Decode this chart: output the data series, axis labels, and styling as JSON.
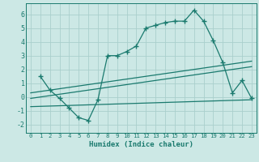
{
  "xlabel": "Humidex (Indice chaleur)",
  "ylabel": "",
  "bg_color": "#cce8e5",
  "line_color": "#1a7a6e",
  "grid_color": "#aacfcc",
  "xlim": [
    -0.5,
    23.5
  ],
  "ylim": [
    -2.6,
    6.8
  ],
  "yticks": [
    -2,
    -1,
    0,
    1,
    2,
    3,
    4,
    5,
    6
  ],
  "xticks": [
    0,
    1,
    2,
    3,
    4,
    5,
    6,
    7,
    8,
    9,
    10,
    11,
    12,
    13,
    14,
    15,
    16,
    17,
    18,
    19,
    20,
    21,
    22,
    23
  ],
  "series1_x": [
    1,
    2,
    3,
    4,
    5,
    6,
    7,
    8,
    9,
    10,
    11,
    12,
    13,
    14,
    15,
    16,
    17,
    18,
    19,
    20,
    21,
    22,
    23
  ],
  "series1_y": [
    1.5,
    0.5,
    -0.1,
    -0.8,
    -1.5,
    -1.7,
    -0.2,
    3.0,
    3.0,
    3.3,
    3.7,
    5.0,
    5.2,
    5.4,
    5.5,
    5.5,
    6.3,
    5.5,
    4.1,
    2.5,
    0.3,
    1.2,
    -0.1
  ],
  "series2_x": [
    0,
    23
  ],
  "series2_y": [
    0.3,
    2.6
  ],
  "series3_x": [
    0,
    23
  ],
  "series3_y": [
    -0.1,
    2.2
  ],
  "series4_x": [
    0,
    23
  ],
  "series4_y": [
    -0.7,
    -0.2
  ]
}
